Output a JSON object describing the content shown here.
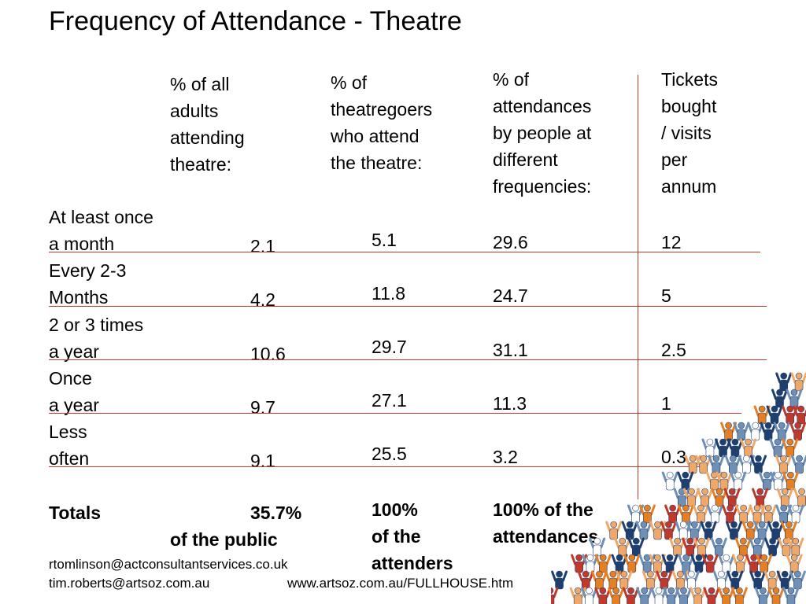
{
  "title": "Frequency of Attendance - Theatre",
  "headers": {
    "col1": [
      "% of all",
      "adults",
      "attending",
      "theatre:"
    ],
    "col2": [
      "% of",
      "theatregoers",
      "who attend",
      "the theatre:"
    ],
    "col3": [
      "% of",
      "attendances",
      "by people at",
      "different",
      "frequencies:"
    ],
    "col4": [
      "Tickets",
      "bought",
      "/ visits",
      "per",
      "annum"
    ]
  },
  "rows": [
    {
      "label": [
        "At least once",
        "a month"
      ],
      "adults": "2.1",
      "theatregoers": "5.1",
      "attendances": "29.6",
      "tickets": "12"
    },
    {
      "label": [
        "Every 2-3",
        "Months"
      ],
      "adults": "4.2",
      "theatregoers": "11.8",
      "attendances": "24.7",
      "tickets": "5"
    },
    {
      "label": [
        "2 or 3 times",
        "a year"
      ],
      "adults": "10.6",
      "theatregoers": "29.7",
      "attendances": "31.1",
      "tickets": "2.5"
    },
    {
      "label": [
        "Once",
        "a year"
      ],
      "adults": "9.7",
      "theatregoers": "27.1",
      "attendances": "11.3",
      "tickets": "1"
    },
    {
      "label": [
        "Less",
        "often"
      ],
      "adults": "9.1",
      "theatregoers": "25.5",
      "attendances": "3.2",
      "tickets": "0.3"
    }
  ],
  "totals": {
    "label": "Totals",
    "adults": "35.7%",
    "adults_note": "of the public",
    "theatregoers": [
      "100%",
      "of the",
      "attenders"
    ],
    "attendances": [
      "100% of the",
      "attendances"
    ]
  },
  "footer": {
    "email1": "rtomlinson@actconsultantservices.co.uk",
    "email2": "tim.roberts@artsoz.com.au",
    "url": "www.artsoz.com.au/FULLHOUSE.htm"
  },
  "colors": {
    "rule": "#c0392b",
    "crowd": [
      "#c0392b",
      "#e67e22",
      "#f0a868",
      "#1f3f6e",
      "#6f8fb5",
      "#ffffff"
    ]
  }
}
